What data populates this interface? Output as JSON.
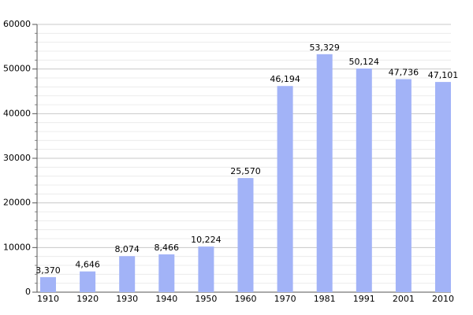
{
  "chart_data": {
    "type": "bar",
    "categories": [
      "1910",
      "1920",
      "1930",
      "1940",
      "1950",
      "1960",
      "1970",
      "1981",
      "1991",
      "2001",
      "2010"
    ],
    "values": [
      3370,
      4646,
      8074,
      8466,
      10224,
      25570,
      46194,
      53329,
      50124,
      47736,
      47101
    ],
    "value_labels": [
      "3,370",
      "4,646",
      "8,074",
      "8,466",
      "10,224",
      "25,570",
      "46,194",
      "53,329",
      "50,124",
      "47,736",
      "47,101"
    ],
    "color": "#a2b3f7",
    "ylim": [
      0,
      60000
    ],
    "yticks": [
      0,
      10000,
      20000,
      30000,
      40000,
      50000,
      60000
    ],
    "minor_yticks": [
      2000,
      4000,
      6000,
      8000,
      12000,
      14000,
      16000,
      18000,
      22000,
      24000,
      26000,
      28000,
      32000,
      34000,
      36000,
      38000,
      42000,
      44000,
      46000,
      48000,
      52000,
      54000,
      56000,
      58000
    ],
    "grid": true
  }
}
